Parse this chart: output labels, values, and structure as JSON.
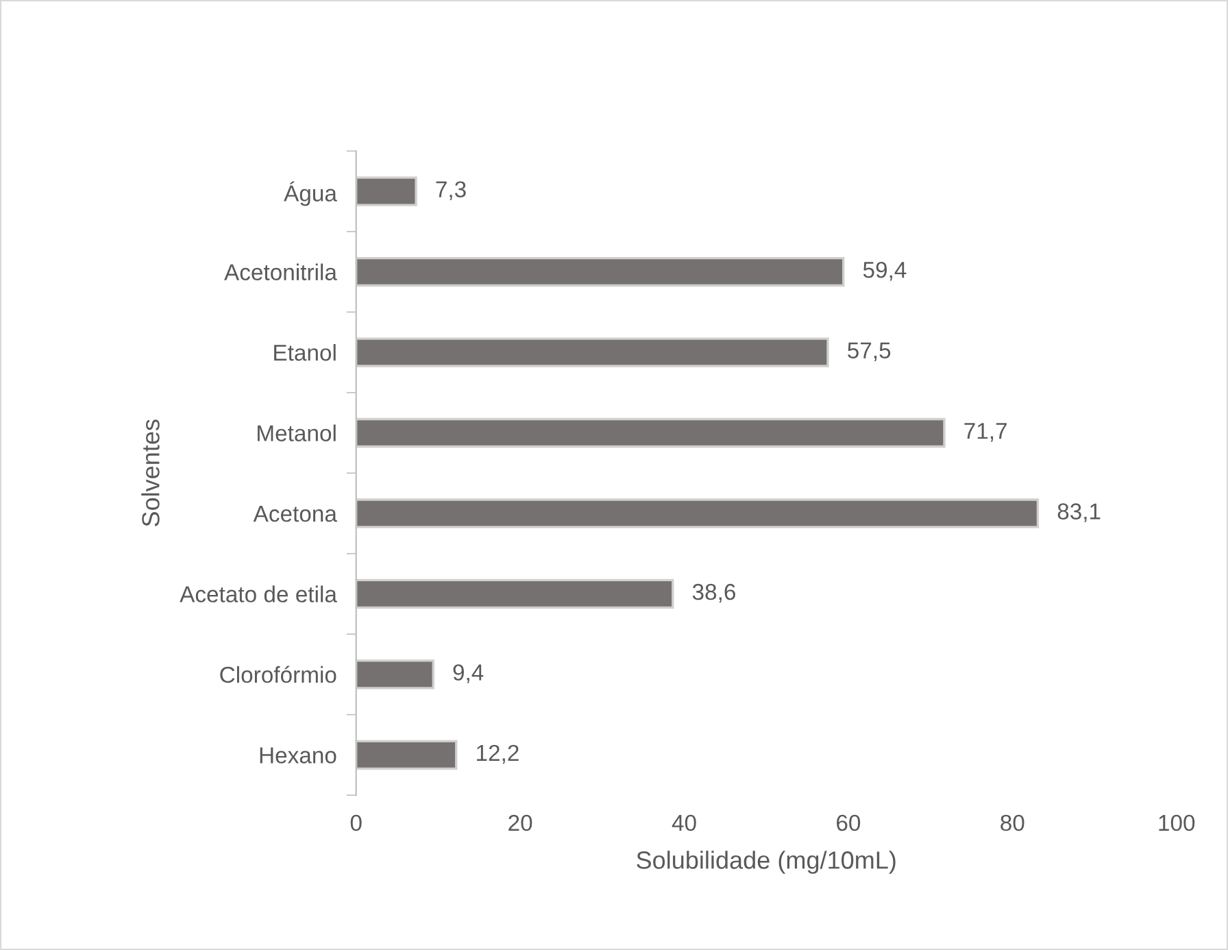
{
  "chart_data": {
    "type": "bar",
    "orientation": "horizontal",
    "xlabel": "Solubilidade (mg/10mL)",
    "ylabel": "Solventes",
    "categories": [
      "Água",
      "Acetonitrila",
      "Etanol",
      "Metanol",
      "Acetona",
      "Acetato de etila",
      "Clorofórmio",
      "Hexano"
    ],
    "values": [
      7.3,
      59.4,
      57.5,
      71.7,
      83.1,
      38.6,
      9.4,
      12.2
    ],
    "value_labels": [
      "7,3",
      "59,4",
      "57,5",
      "71,7",
      "83,1",
      "38,6",
      "9,4",
      "12,2"
    ],
    "color": "#767171",
    "xlim": [
      0,
      100
    ],
    "xticks": [
      0,
      20,
      40,
      60,
      80,
      100
    ],
    "grid": false,
    "legend": false
  }
}
